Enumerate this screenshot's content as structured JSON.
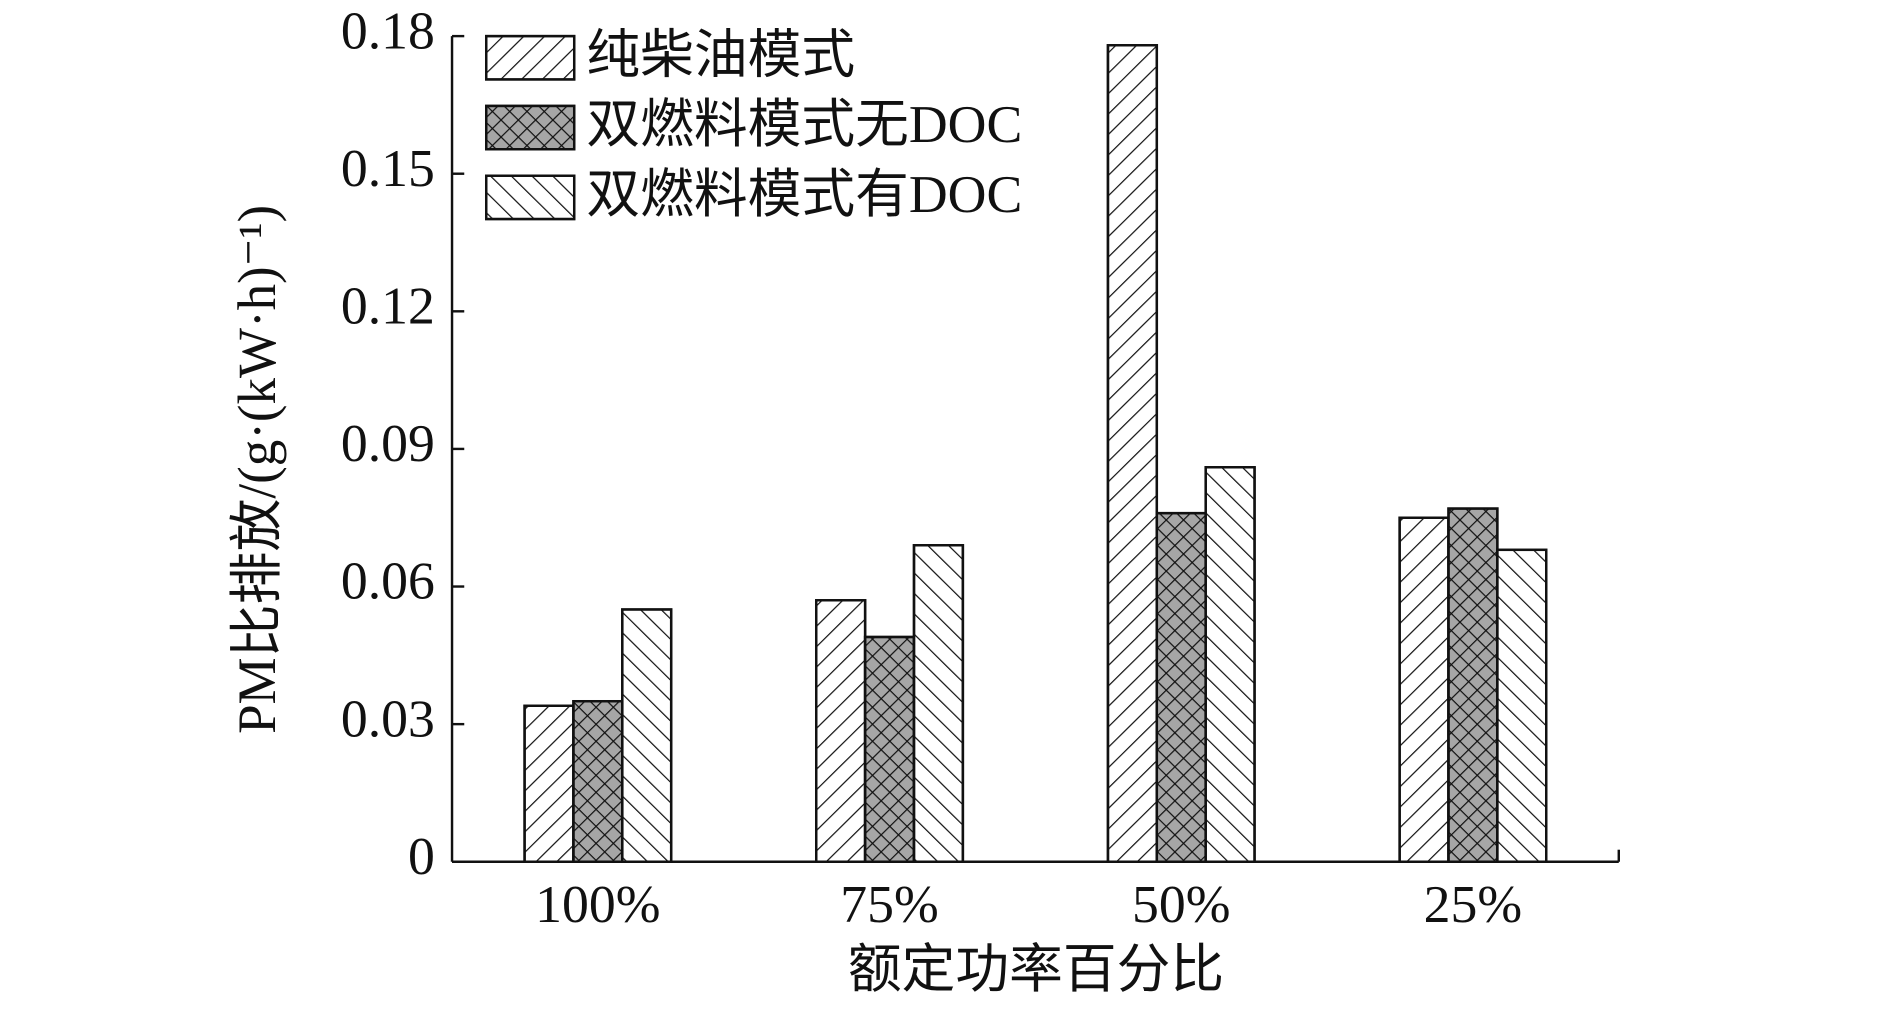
{
  "chart_data": {
    "type": "bar",
    "x_label": "额定功率百分比",
    "y_label": "PM比排放/(g·(kW·h)⁻¹)",
    "categories": [
      "100%",
      "75%",
      "50%",
      "25%"
    ],
    "series": [
      {
        "name": "纯柴油模式",
        "color": "#ffffff",
        "hatch": "forward-diagonal",
        "values": [
          0.034,
          0.057,
          0.178,
          0.075
        ]
      },
      {
        "name": "双燃料模式无DOC",
        "color": "#a6a6a6",
        "hatch": "crosshatch",
        "values": [
          0.035,
          0.049,
          0.076,
          0.077
        ]
      },
      {
        "name": "双燃料模式有DOC",
        "color": "#ffffff",
        "hatch": "back-diagonal",
        "values": [
          0.055,
          0.069,
          0.086,
          0.068
        ]
      }
    ],
    "ylim": [
      0,
      0.18
    ],
    "yticks": [
      0,
      0.03,
      0.06,
      0.09,
      0.12,
      0.15,
      0.18
    ],
    "legend": "upper-left"
  }
}
